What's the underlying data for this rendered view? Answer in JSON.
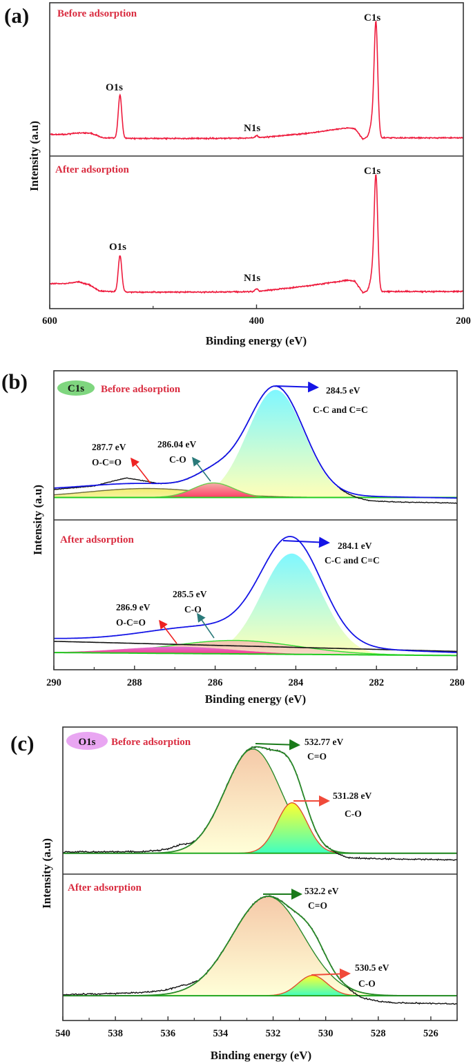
{
  "figure": {
    "panel_labels": [
      "(a)",
      "(b)",
      "(c)"
    ]
  },
  "chart_data": [
    {
      "panel": "(a)",
      "type": "line",
      "kind": "survey",
      "xlabel": "Binding energy (eV)",
      "ylabel": "Intensity (a.u)",
      "xlim": [
        600,
        200
      ],
      "xticks": [
        600,
        400,
        200
      ],
      "minor_xticks": [
        500,
        300
      ],
      "grid": false,
      "subplots": [
        {
          "title": "Before adsorption",
          "ylim": [
            -0.16,
            1.19
          ],
          "color": "#ee1a3c",
          "background": [
            [
              600,
              0.03
            ],
            [
              585,
              0.03
            ],
            [
              572,
              0.045
            ],
            [
              560,
              0.04
            ],
            [
              548,
              0.0
            ],
            [
              520,
              -0.005
            ],
            [
              450,
              -0.005
            ],
            [
              400,
              0.0
            ],
            [
              350,
              0.04
            ],
            [
              312,
              0.09
            ],
            [
              305,
              0.08
            ],
            [
              297,
              -0.01
            ],
            [
              291,
              0.01
            ],
            [
              284.5,
              0.05
            ],
            [
              279,
              0.0
            ],
            [
              200,
              0.0
            ]
          ],
          "peaks": [
            {
              "label": "O1s",
              "center": 532,
              "height": 0.38,
              "fwhm": 4
            },
            {
              "label": "N1s",
              "center": 400,
              "height": 0.02,
              "fwhm": 3
            },
            {
              "label": "C1s",
              "center": 284.5,
              "height": 0.95,
              "fwhm": 4
            }
          ],
          "shoulders": [
            {
              "center": 288,
              "height": 0.12,
              "fwhm": 5
            }
          ]
        },
        {
          "title": "After adsorption",
          "ylim": [
            -0.15,
            1.19
          ],
          "color": "#ee1a3c",
          "background": [
            [
              600,
              0.07
            ],
            [
              585,
              0.07
            ],
            [
              572,
              0.085
            ],
            [
              562,
              0.06
            ],
            [
              552,
              0.005
            ],
            [
              540,
              0.0
            ],
            [
              520,
              -0.005
            ],
            [
              450,
              -0.005
            ],
            [
              400,
              0.0
            ],
            [
              350,
              0.05
            ],
            [
              312,
              0.1
            ],
            [
              305,
              0.09
            ],
            [
              297,
              -0.01
            ],
            [
              291,
              0.01
            ],
            [
              284.5,
              0.05
            ],
            [
              279,
              0.0
            ],
            [
              200,
              0.0
            ]
          ],
          "peaks": [
            {
              "label": "O1s",
              "center": 532,
              "height": 0.32,
              "fwhm": 4
            },
            {
              "label": "N1s",
              "center": 400,
              "height": 0.025,
              "fwhm": 3
            },
            {
              "label": "C1s",
              "center": 284.5,
              "height": 0.95,
              "fwhm": 4
            }
          ],
          "shoulders": [
            {
              "center": 288,
              "height": 0.12,
              "fwhm": 5
            }
          ]
        }
      ]
    },
    {
      "panel": "(b)",
      "type": "line",
      "kind": "fit",
      "badge": "C1s",
      "badge_color": "#7fd67f",
      "xlabel": "Binding energy (eV)",
      "ylabel": "Intensity (a.u)",
      "xlim": [
        290,
        280
      ],
      "xticks": [
        290,
        288,
        286,
        284,
        282,
        280
      ],
      "minor_xticks": [
        289,
        287,
        285,
        283,
        281
      ],
      "grid": false,
      "envelope_color": "#1414e6",
      "baseline_color": "#22cc22",
      "subplots": [
        {
          "title": "Before adsorption",
          "ylim": [
            -0.2,
            1.13
          ],
          "envelope_background": [
            [
              290,
              0.06
            ],
            [
              280,
              -0.005
            ]
          ],
          "baseline": [
            [
              290,
              0
            ],
            [
              280,
              0
            ]
          ],
          "raw_offset": [
            [
              290,
              -0.012
            ],
            [
              289,
              -0.005
            ],
            [
              288.2,
              0.05
            ],
            [
              287.4,
              0.0
            ],
            [
              283,
              0.0
            ],
            [
              282.6,
              -0.02
            ],
            [
              282.2,
              -0.04
            ],
            [
              281.5,
              -0.045
            ],
            [
              280,
              -0.045
            ]
          ],
          "components": [
            {
              "name": "C-C and C=C",
              "center": 284.5,
              "height": 0.96,
              "fwhm": 1.65,
              "fill": [
                "#7ff7ff",
                "#ffffb8"
              ],
              "stroke": "none"
            },
            {
              "name": "O-C=O",
              "center": 287.7,
              "height": 0.08,
              "fwhm": 3.5,
              "fill": [
                "#f3ee70",
                "#f6f2a0"
              ],
              "stroke": "#6b6b3a"
            },
            {
              "name": "C-O",
              "center": 286.04,
              "height": 0.13,
              "fwhm": 1.2,
              "fill": [
                "#f2b0a8",
                "#ff3d66"
              ],
              "stroke": "#6acb4a"
            }
          ],
          "annotations": [
            {
              "energy": "284.5 eV",
              "bond": "C-C and C=C"
            },
            {
              "energy": "287.7 eV",
              "bond": "O-C=O"
            },
            {
              "energy": "286.04 eV",
              "bond": "C-O"
            }
          ]
        },
        {
          "title": "After adsorption",
          "ylim": [
            -0.154,
            1.185
          ],
          "envelope_background": [
            [
              290,
              0.12
            ],
            [
              280,
              0.0
            ]
          ],
          "baseline": [
            [
              290,
              0
            ],
            [
              280,
              -0.027
            ]
          ],
          "black_line": [
            [
              290,
              0.1
            ],
            [
              280,
              0.01
            ]
          ],
          "components": [
            {
              "name": "C-C and C=C",
              "center": 284.1,
              "height": 0.9,
              "fwhm": 1.75,
              "fill": [
                "#7ff7ff",
                "#ffffb8"
              ],
              "stroke": "none"
            },
            {
              "name": "C-O",
              "center": 285.5,
              "height": 0.12,
              "fwhm": 3.6,
              "fill": [
                "#f2c4ae",
                "#f7dccb"
              ],
              "stroke": "#33dd33"
            },
            {
              "name": "O-C=O",
              "center": 286.9,
              "height": 0.06,
              "fwhm": 3.2,
              "fill": [
                "#dd70d8",
                "#ff3070"
              ],
              "stroke": "none"
            }
          ],
          "annotations": [
            {
              "energy": "284.1 eV",
              "bond": "C-C and C=C"
            },
            {
              "energy": "286.9 eV",
              "bond": "O-C=O"
            },
            {
              "energy": "285.5 eV",
              "bond": "C-O"
            }
          ]
        }
      ]
    },
    {
      "panel": "(c)",
      "type": "line",
      "kind": "fit",
      "badge": "O1s",
      "badge_color": "#e9a6f2",
      "xlabel": "Binding energy (eV)",
      "ylabel": "Intensity (a.u)",
      "xlim": [
        540,
        525
      ],
      "xticks": [
        540,
        538,
        536,
        534,
        532,
        530,
        528,
        526
      ],
      "minor_xticks": [
        539,
        537,
        535,
        533,
        531,
        529,
        527,
        525
      ],
      "grid": false,
      "envelope_color": "#2a8a2a",
      "baseline_color": "#22aa22",
      "subplots": [
        {
          "title": "Before adsorption",
          "ylim": [
            -0.19,
            1.15
          ],
          "envelope_background": [
            [
              540,
              0
            ],
            [
              525,
              0
            ]
          ],
          "baseline": [
            [
              540,
              0
            ],
            [
              525,
              0
            ]
          ],
          "raw_offset": [
            [
              540,
              0.012
            ],
            [
              537,
              0.015
            ],
            [
              536,
              0.03
            ],
            [
              535.5,
              0.05
            ],
            [
              535,
              0.0
            ],
            [
              529.8,
              0.0
            ],
            [
              529.2,
              -0.04
            ],
            [
              528,
              -0.05
            ],
            [
              525,
              -0.06
            ]
          ],
          "components": [
            {
              "name": "C=O",
              "center": 532.77,
              "height": 0.95,
              "fwhm": 2.5,
              "fill": [
                "#f5c9a8",
                "#ffffd8"
              ],
              "stroke": "#2a8a2a"
            },
            {
              "name": "C-O",
              "center": 531.28,
              "height": 0.46,
              "fwhm": 1.35,
              "fill": [
                "#ffff30",
                "#40ffc0"
              ],
              "stroke": "#e05030"
            }
          ],
          "annotations": [
            {
              "energy": "532.77 eV",
              "bond": "C=O"
            },
            {
              "energy": "531.28 eV",
              "bond": "C-O"
            }
          ]
        },
        {
          "title": "After adsorption",
          "ylim": [
            -0.245,
            1.2
          ],
          "envelope_background": [
            [
              540,
              0
            ],
            [
              525,
              0
            ]
          ],
          "baseline": [
            [
              540,
              0
            ],
            [
              525,
              0
            ]
          ],
          "raw_offset": [
            [
              540,
              0.01
            ],
            [
              537,
              0.03
            ],
            [
              535.5,
              0.05
            ],
            [
              534.8,
              0.0
            ],
            [
              529.3,
              0.0
            ],
            [
              528.6,
              -0.05
            ],
            [
              527.5,
              -0.07
            ],
            [
              525,
              -0.08
            ]
          ],
          "components": [
            {
              "name": "C=O",
              "center": 532.2,
              "height": 0.98,
              "fwhm": 3.2,
              "fill": [
                "#f5c9a8",
                "#ffffd8"
              ],
              "stroke": "#2a8a2a"
            },
            {
              "name": "C-O",
              "center": 530.5,
              "height": 0.2,
              "fwhm": 1.3,
              "fill": [
                "#ffff30",
                "#40ffc0"
              ],
              "stroke": "#e05030"
            }
          ],
          "annotations": [
            {
              "energy": "532.2 eV",
              "bond": "C=O"
            },
            {
              "energy": "530.5 eV",
              "bond": "C-O"
            }
          ]
        }
      ]
    }
  ]
}
